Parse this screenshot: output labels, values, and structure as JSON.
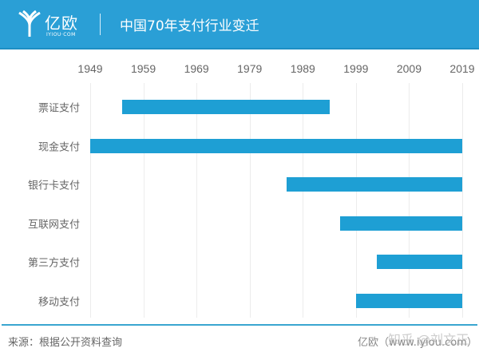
{
  "header": {
    "logo_cn": "亿欧",
    "logo_en": "IYIOU·COM",
    "title": "中国70年支付行业变迁"
  },
  "footer": {
    "source": "来源：根据公开资料查询",
    "credit": "亿欧（www.iyiou.com）",
    "watermark": "知乎 @刘文正"
  },
  "colors": {
    "header": "#2a9fd6",
    "bar": "#1e9fd4"
  },
  "chart_data": {
    "type": "bar",
    "subtype": "floating-horizontal-timeline",
    "title": "中国70年支付行业变迁",
    "xlabel": "",
    "ylabel": "",
    "x_ticks": [
      "1949",
      "1959",
      "1969",
      "1979",
      "1989",
      "1999",
      "2009",
      "2019"
    ],
    "xlim": [
      1949,
      2019
    ],
    "grid": true,
    "categories": [
      "票证支付",
      "现金支付",
      "银行卡支付",
      "互联网支付",
      "第三方支付",
      "移动支付"
    ],
    "series": [
      {
        "name": "period",
        "start": [
          1955,
          1949,
          1986,
          1996,
          2003,
          1999
        ],
        "end": [
          1994,
          2019,
          2019,
          2019,
          2019,
          2019
        ]
      }
    ]
  }
}
